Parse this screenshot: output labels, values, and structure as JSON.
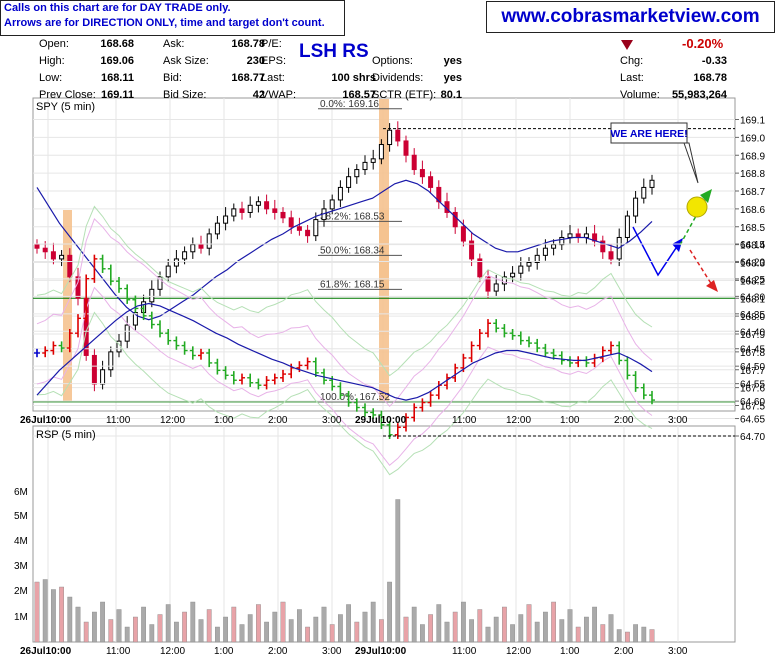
{
  "header": {
    "notice_line1": "Calls on this chart are for DAY TRADE only.",
    "notice_line2": "Arrows are for DIRECTION ONLY, time and target don't count.",
    "website": "www.cobrasmarketview.com",
    "symbol_title": "LSH RS",
    "change_pct": "-0.20%"
  },
  "quote": {
    "col1": [
      {
        "label": "Open:",
        "value": "168.68"
      },
      {
        "label": "High:",
        "value": "169.06"
      },
      {
        "label": "Low:",
        "value": "168.11"
      },
      {
        "label": "Prev Close:",
        "value": "169.11"
      }
    ],
    "col2": [
      {
        "label": "Ask:",
        "value": "168.78"
      },
      {
        "label": "Ask Size:",
        "value": "230"
      },
      {
        "label": "Bid:",
        "value": "168.77"
      },
      {
        "label": "Bid Size:",
        "value": "42"
      }
    ],
    "col3": [
      {
        "label": "P/E:",
        "value": ""
      },
      {
        "label": "EPS:",
        "value": ""
      },
      {
        "label": "Last:",
        "value": "100 shrs"
      },
      {
        "label": "VWAP:",
        "value": "168.57"
      }
    ],
    "col4": [
      {
        "label": "Options:",
        "value": "yes"
      },
      {
        "label": "Dividends:",
        "value": "yes"
      },
      {
        "label": "SCTR (ETF):",
        "value": "80.1"
      }
    ],
    "col5": [
      {
        "label": "Chg:",
        "value": "-0.33"
      },
      {
        "label": "Last:",
        "value": "168.78"
      },
      {
        "label": "Volume:",
        "value": "55,983,264"
      }
    ]
  },
  "chart_data": [
    {
      "type": "candlestick",
      "title": "SPY (5 min)",
      "ylim": [
        167.5,
        169.15
      ],
      "y_ticks": [
        "169.1",
        "169.0",
        "168.9",
        "168.8",
        "168.7",
        "168.6",
        "168.5",
        "168.4",
        "168.3",
        "168.2",
        "168.1",
        "168.0",
        "167.9",
        "167.8",
        "167.7",
        "167.6",
        "167.5"
      ],
      "x_tick_labels": [
        "26Jul10:00",
        "11:00",
        "12:00",
        "1:00",
        "2:00",
        "3:00",
        "29Jul10:00",
        "11:00",
        "12:00",
        "1:00",
        "2:00",
        "3:00"
      ],
      "close_path": [
        168.38,
        168.36,
        168.32,
        168.34,
        168.22,
        168.1,
        167.78,
        167.62,
        167.7,
        167.8,
        167.86,
        167.95,
        168.02,
        168.08,
        168.15,
        168.22,
        168.28,
        168.32,
        168.36,
        168.4,
        168.38,
        168.46,
        168.52,
        168.56,
        168.6,
        168.58,
        168.62,
        168.64,
        168.6,
        168.58,
        168.55,
        168.5,
        168.48,
        168.45,
        168.54,
        168.6,
        168.65,
        168.72,
        168.78,
        168.82,
        168.86,
        168.88,
        168.96,
        169.04,
        168.98,
        168.9,
        168.82,
        168.78,
        168.72,
        168.64,
        168.58,
        168.5,
        168.42,
        168.32,
        168.22,
        168.14,
        168.18,
        168.22,
        168.24,
        168.28,
        168.3,
        168.34,
        168.38,
        168.4,
        168.44,
        168.46,
        168.44,
        168.46,
        168.42,
        168.36,
        168.32,
        168.44,
        168.56,
        168.66,
        168.72,
        168.76
      ],
      "moving_average": [
        168.72,
        168.62,
        168.52,
        168.44,
        168.36,
        168.28,
        168.2,
        168.12,
        168.05,
        168.0,
        167.98,
        168.0,
        168.04,
        168.08,
        168.12,
        168.17,
        168.22,
        168.26,
        168.31,
        168.35,
        168.39,
        168.43,
        168.46,
        168.5,
        168.53,
        168.56,
        168.58,
        168.6,
        168.62,
        168.64,
        168.66,
        168.7,
        168.74,
        168.76,
        168.74,
        168.7,
        168.64,
        168.58,
        168.52,
        168.46,
        168.42,
        168.38,
        168.36,
        168.36,
        168.38,
        168.4,
        168.42,
        168.43,
        168.44,
        168.44,
        168.42,
        168.4,
        168.38,
        168.42,
        168.47,
        168.53
      ],
      "fibonacci_levels": [
        {
          "label": "0.0%: 169.16",
          "value": 169.16
        },
        {
          "label": "38.2%: 168.53",
          "value": 168.53
        },
        {
          "label": "50.0%: 168.34",
          "value": 168.34
        },
        {
          "label": "61.8%: 168.15",
          "value": 168.15
        },
        {
          "label": "100.0%: 167.52",
          "value": 167.52
        }
      ],
      "horizontal_lines": [
        168.1,
        167.52
      ],
      "dashed_high_line": 169.06,
      "annotation": "WE ARE HERE!",
      "colors": {
        "up": "#000000",
        "down": "#cc0033",
        "ma": "#1a1aaa",
        "support": "#007a00",
        "highlight": "#f5c28f",
        "arrow_up": "#22aa22",
        "arrow_down": "#dd2222",
        "arrow_blue": "#0000ee",
        "ball": "#f2e600"
      }
    },
    {
      "type": "line",
      "title": "RSP (5 min)",
      "ylim": [
        64.13,
        64.72
      ],
      "y_ticks": [
        "64.70",
        "64.65",
        "64.60",
        "64.55",
        "64.50",
        "64.45",
        "64.40",
        "64.35",
        "64.30",
        "64.25",
        "64.20",
        "64.15"
      ],
      "volume_ticks": [
        "6M",
        "5M",
        "4M",
        "3M",
        "2M",
        "1M"
      ],
      "x_tick_labels": [
        "26Jul10:00",
        "11:00",
        "12:00",
        "1:00",
        "2:00",
        "3:00",
        "29Jul10:00",
        "11:00",
        "12:00",
        "1:00",
        "2:00",
        "3:00"
      ],
      "colors": {
        "up": "#22aa22",
        "down": "#dd0000",
        "flat": "#0000cc",
        "volume_down": "#e8a3a8",
        "volume_up": "#aaaaaa",
        "ma": "#1a1aaa",
        "envelope1": "#b5e0b5",
        "envelope2": "#e8b3e8",
        "envelope3": "#c9a0e8"
      }
    }
  ]
}
